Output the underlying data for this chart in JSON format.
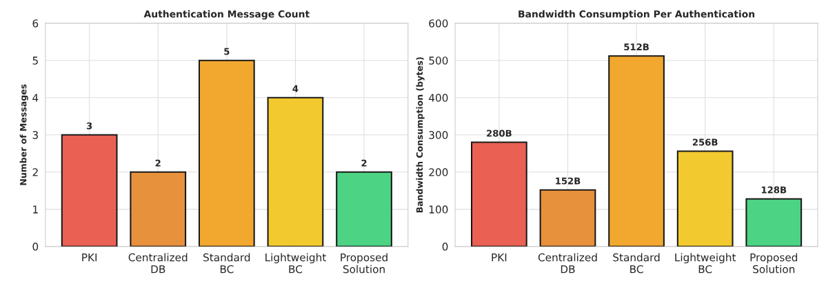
{
  "chart_data": [
    {
      "type": "bar",
      "title": "Authentication Message Count",
      "ylabel": "Number of Messages",
      "categories": [
        "PKI",
        "Centralized\nDB",
        "Standard\nBC",
        "Lightweight\nBC",
        "Proposed\nSolution"
      ],
      "values": [
        3,
        2,
        5,
        4,
        2
      ],
      "colors": [
        "#ea6153",
        "#e8913c",
        "#f2a82f",
        "#f2ca2f",
        "#4cd383"
      ],
      "ylim": [
        0,
        6
      ],
      "yticks": [
        0,
        1,
        2,
        3,
        4,
        5,
        6
      ],
      "grid": true,
      "data_labels": true
    },
    {
      "type": "bar",
      "title": "Bandwidth Consumption Per Authentication",
      "ylabel": "Bandwidth Consumption (bytes)",
      "categories": [
        "PKI",
        "Centralized\nDB",
        "Standard\nBC",
        "Lightweight\nBC",
        "Proposed\nSolution"
      ],
      "values": [
        280,
        152,
        512,
        256,
        128
      ],
      "value_labels": [
        "280B",
        "152B",
        "512B",
        "256B",
        "128B"
      ],
      "colors": [
        "#ea6153",
        "#e8913c",
        "#f2a82f",
        "#f2ca2f",
        "#4cd383"
      ],
      "ylim": [
        0,
        600
      ],
      "yticks": [
        0,
        100,
        200,
        300,
        400,
        500,
        600
      ],
      "grid": true
    }
  ]
}
